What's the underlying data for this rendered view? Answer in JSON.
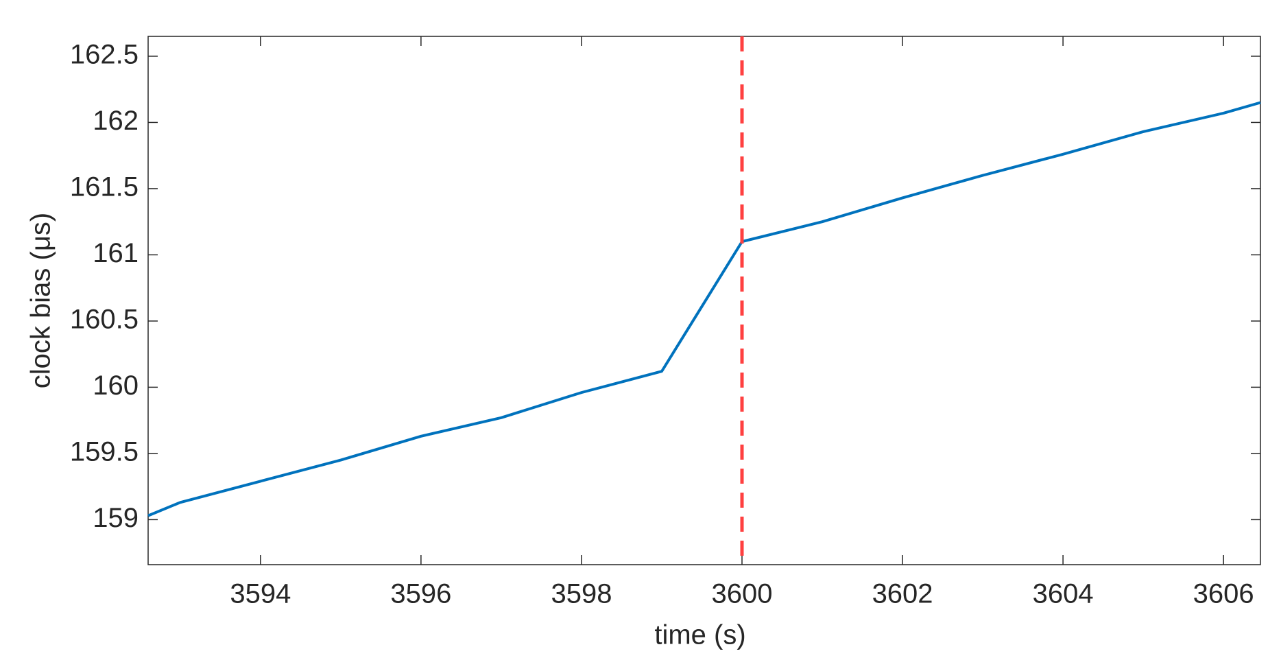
{
  "chart_data": {
    "type": "line",
    "xlabel": "time (s)",
    "ylabel": "clock bias (μs)",
    "x": [
      3592.6,
      3593,
      3594,
      3595,
      3596,
      3597,
      3598,
      3599,
      3600,
      3601,
      3602,
      3603,
      3604,
      3605,
      3606,
      3606.46
    ],
    "series": [
      {
        "color": "#0072bd",
        "values": [
          159.03,
          159.13,
          159.29,
          159.45,
          159.63,
          159.77,
          159.96,
          160.12,
          161.1,
          161.25,
          161.43,
          161.6,
          161.76,
          161.93,
          162.07,
          162.15
        ]
      }
    ],
    "vline": {
      "x": 3600,
      "color": "#ff4040",
      "style": "dashed"
    },
    "xlim": [
      3592.6,
      3606.46
    ],
    "ylim": [
      158.66,
      162.65
    ],
    "xticks": [
      3594,
      3596,
      3598,
      3600,
      3602,
      3604,
      3606
    ],
    "yticks": [
      159,
      159.5,
      160,
      160.5,
      161,
      161.5,
      162,
      162.5
    ],
    "grid": false
  }
}
